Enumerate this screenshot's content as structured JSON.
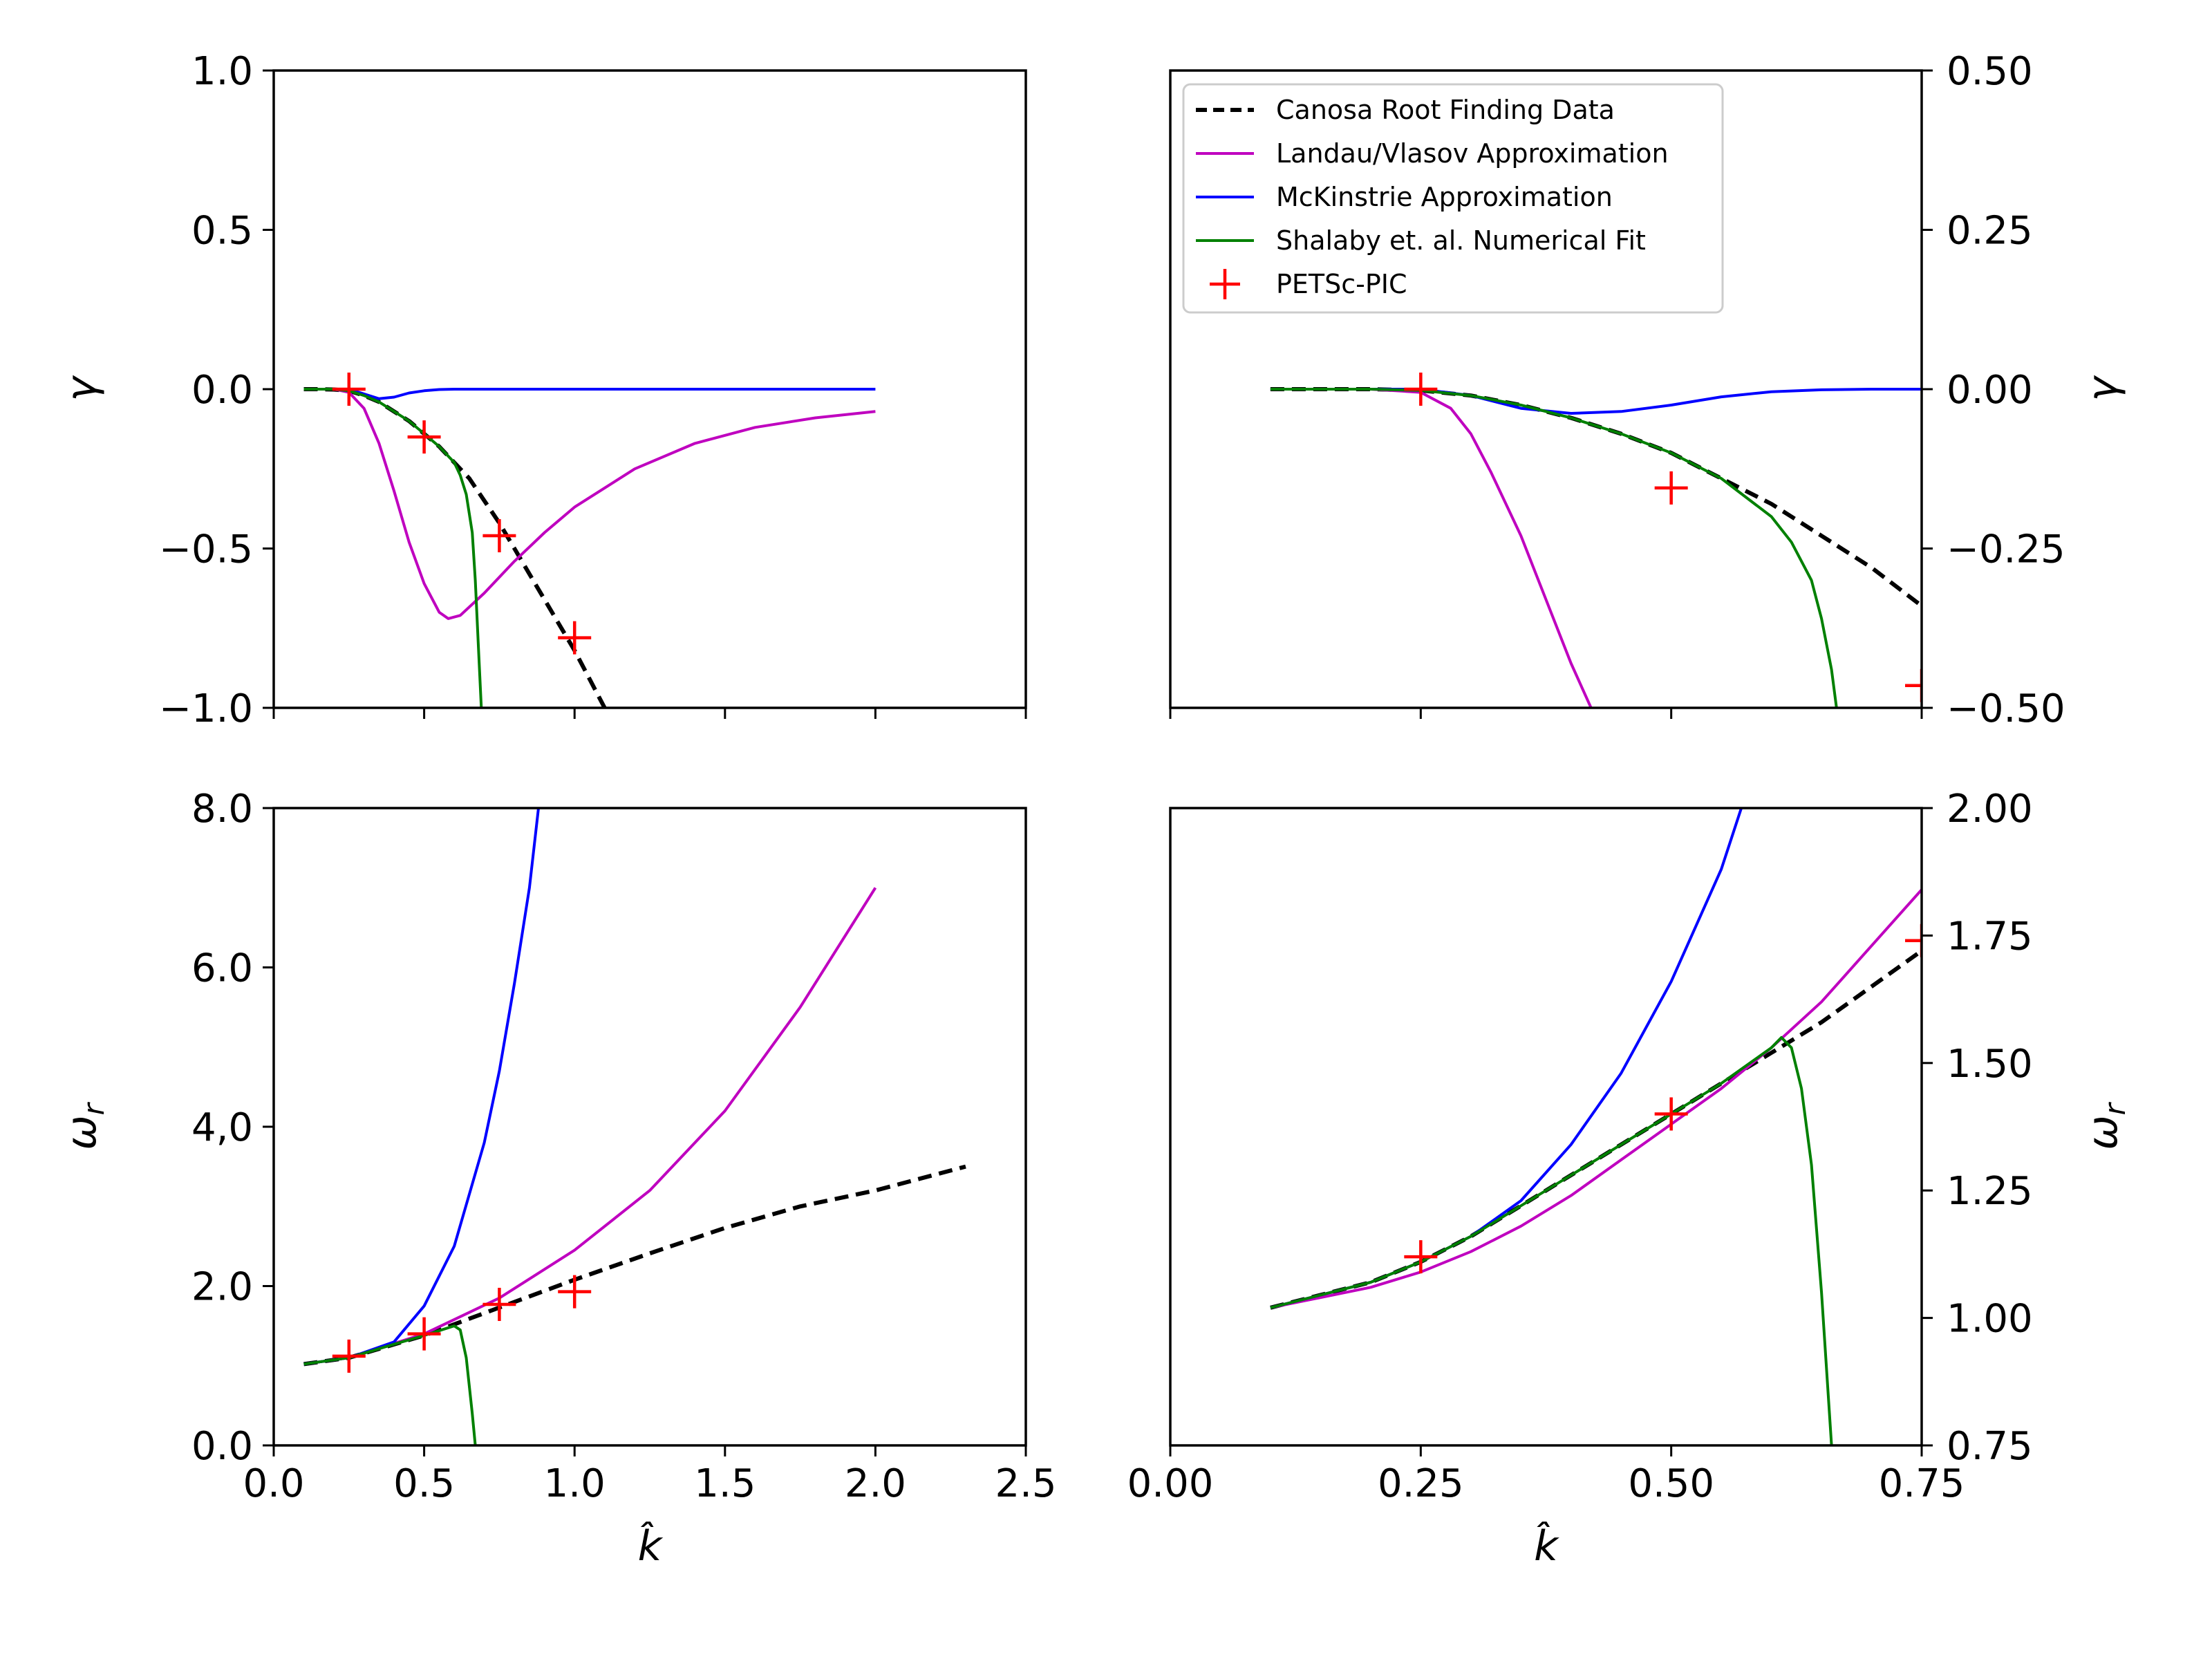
{
  "chart_data": [
    {
      "panel": "top-left",
      "type": "line",
      "xlabel": "",
      "ylabel": "γ",
      "xlim": [
        0.0,
        2.5
      ],
      "ylim": [
        -1.0,
        1.0
      ],
      "x_ticks": [
        0.0,
        0.5,
        1.0,
        1.5,
        2.0,
        2.5
      ],
      "x_tick_labels": [
        "",
        "",
        "",
        "",
        "",
        ""
      ],
      "y_ticks": [
        -1.0,
        -0.5,
        0.0,
        0.5,
        1.0
      ],
      "y_tick_labels": [
        "−1.0",
        "−0.5",
        "0.0",
        "0.5",
        "1.0"
      ],
      "y_axis_side": "left",
      "series": [
        {
          "name": "Canosa Root Finding Data",
          "style": "dashed",
          "color": "#000000",
          "x": [
            0.1,
            0.15,
            0.2,
            0.25,
            0.3,
            0.35,
            0.4,
            0.45,
            0.5,
            0.55,
            0.6,
            0.65,
            0.7,
            0.75,
            0.8,
            0.85,
            0.9,
            0.95,
            1.0,
            1.05,
            1.1
          ],
          "y": [
            0.0,
            0.0,
            -0.001,
            -0.005,
            -0.02,
            -0.04,
            -0.07,
            -0.1,
            -0.14,
            -0.18,
            -0.23,
            -0.28,
            -0.35,
            -0.42,
            -0.5,
            -0.58,
            -0.66,
            -0.74,
            -0.82,
            -0.91,
            -1.0
          ]
        },
        {
          "name": "Landau/Vlasov Approximation",
          "style": "solid",
          "color": "#bf00bf",
          "x": [
            0.1,
            0.2,
            0.25,
            0.3,
            0.35,
            0.4,
            0.45,
            0.5,
            0.55,
            0.58,
            0.62,
            0.7,
            0.8,
            0.9,
            1.0,
            1.2,
            1.4,
            1.6,
            1.8,
            2.0
          ],
          "y": [
            0.0,
            0.0,
            -0.01,
            -0.06,
            -0.17,
            -0.32,
            -0.48,
            -0.61,
            -0.7,
            -0.72,
            -0.71,
            -0.64,
            -0.54,
            -0.45,
            -0.37,
            -0.25,
            -0.17,
            -0.12,
            -0.09,
            -0.07
          ]
        },
        {
          "name": "McKinstrie Approximation",
          "style": "solid",
          "color": "#0000ff",
          "x": [
            0.1,
            0.25,
            0.3,
            0.35,
            0.4,
            0.45,
            0.5,
            0.55,
            0.6,
            0.7,
            0.8,
            1.0,
            1.5,
            2.0
          ],
          "y": [
            0.0,
            0.0,
            -0.015,
            -0.03,
            -0.025,
            -0.012,
            -0.005,
            -0.001,
            0.0,
            0.0,
            0.0,
            0.0,
            0.0,
            0.0
          ]
        },
        {
          "name": "Shalaby et. al. Numerical Fit",
          "style": "solid",
          "color": "#008000",
          "x": [
            0.1,
            0.2,
            0.25,
            0.3,
            0.35,
            0.4,
            0.45,
            0.5,
            0.55,
            0.6,
            0.62,
            0.64,
            0.66,
            0.67,
            0.68,
            0.685,
            0.69
          ],
          "y": [
            0.0,
            0.0,
            -0.005,
            -0.02,
            -0.04,
            -0.07,
            -0.1,
            -0.14,
            -0.18,
            -0.23,
            -0.27,
            -0.33,
            -0.45,
            -0.6,
            -0.8,
            -0.9,
            -1.0
          ]
        },
        {
          "name": "PETSc-PIC",
          "style": "marker",
          "color": "#ff0000",
          "x": [
            0.25,
            0.5,
            0.75,
            1.0
          ],
          "y": [
            0.0,
            -0.15,
            -0.46,
            -0.78
          ]
        }
      ]
    },
    {
      "panel": "top-right",
      "type": "line",
      "xlabel": "",
      "ylabel": "γ",
      "xlim": [
        0.0,
        0.75
      ],
      "ylim": [
        -0.5,
        0.5
      ],
      "x_ticks": [
        0.0,
        0.25,
        0.5,
        0.75
      ],
      "x_tick_labels": [
        "",
        "",
        "",
        ""
      ],
      "y_ticks": [
        -0.5,
        -0.25,
        0.0,
        0.25,
        0.5
      ],
      "y_tick_labels": [
        "−0.50",
        "−0.25",
        "0.00",
        "0.25",
        "0.50"
      ],
      "y_axis_side": "right",
      "legend": "top-left",
      "series": [
        {
          "name": "Canosa Root Finding Data",
          "style": "dashed",
          "color": "#000000",
          "x": [
            0.1,
            0.2,
            0.25,
            0.3,
            0.35,
            0.4,
            0.45,
            0.5,
            0.55,
            0.6,
            0.65,
            0.7,
            0.75
          ],
          "y": [
            0.0,
            0.0,
            -0.002,
            -0.01,
            -0.025,
            -0.045,
            -0.07,
            -0.1,
            -0.14,
            -0.18,
            -0.23,
            -0.28,
            -0.34
          ]
        },
        {
          "name": "Landau/Vlasov Approximation",
          "style": "solid",
          "color": "#bf00bf",
          "x": [
            0.1,
            0.2,
            0.25,
            0.28,
            0.3,
            0.32,
            0.35,
            0.38,
            0.4,
            0.42
          ],
          "y": [
            0.0,
            0.0,
            -0.005,
            -0.03,
            -0.07,
            -0.13,
            -0.23,
            -0.35,
            -0.43,
            -0.5
          ]
        },
        {
          "name": "McKinstrie Approximation",
          "style": "solid",
          "color": "#0000ff",
          "x": [
            0.1,
            0.25,
            0.3,
            0.35,
            0.4,
            0.45,
            0.5,
            0.55,
            0.6,
            0.65,
            0.7,
            0.75
          ],
          "y": [
            0.0,
            0.0,
            -0.01,
            -0.03,
            -0.038,
            -0.035,
            -0.025,
            -0.012,
            -0.004,
            -0.001,
            0.0,
            0.0
          ]
        },
        {
          "name": "Shalaby et. al. Numerical Fit",
          "style": "solid",
          "color": "#008000",
          "x": [
            0.1,
            0.2,
            0.25,
            0.3,
            0.35,
            0.4,
            0.45,
            0.5,
            0.55,
            0.6,
            0.62,
            0.64,
            0.65,
            0.66,
            0.665
          ],
          "y": [
            0.0,
            0.0,
            -0.002,
            -0.01,
            -0.025,
            -0.045,
            -0.07,
            -0.1,
            -0.14,
            -0.2,
            -0.24,
            -0.3,
            -0.36,
            -0.44,
            -0.5
          ]
        },
        {
          "name": "PETSc-PIC",
          "style": "marker",
          "color": "#ff0000",
          "x": [
            0.25,
            0.5,
            0.75
          ],
          "y": [
            0.0,
            -0.155,
            -0.465
          ]
        }
      ]
    },
    {
      "panel": "bottom-left",
      "type": "line",
      "xlabel": "k̂",
      "ylabel": "ω_r",
      "xlim": [
        0.0,
        2.5
      ],
      "ylim": [
        0.0,
        8.0
      ],
      "x_ticks": [
        0.0,
        0.5,
        1.0,
        1.5,
        2.0,
        2.5
      ],
      "x_tick_labels": [
        "0.0",
        "0.5",
        "1.0",
        "1.5",
        "2.0",
        "2.5"
      ],
      "y_ticks": [
        0.0,
        2.0,
        4.0,
        6.0,
        8.0
      ],
      "y_tick_labels": [
        "0.0",
        "2.0",
        "4,0",
        "6.0",
        "8.0"
      ],
      "y_axis_side": "left",
      "series": [
        {
          "name": "Canosa Root Finding Data",
          "style": "dashed",
          "color": "#000000",
          "x": [
            0.1,
            0.25,
            0.5,
            0.75,
            1.0,
            1.25,
            1.5,
            1.75,
            2.0,
            2.3
          ],
          "y": [
            1.02,
            1.1,
            1.38,
            1.73,
            2.08,
            2.41,
            2.73,
            3.0,
            3.2,
            3.5
          ]
        },
        {
          "name": "Landau/Vlasov Approximation",
          "style": "solid",
          "color": "#bf00bf",
          "x": [
            0.1,
            0.25,
            0.5,
            0.75,
            1.0,
            1.25,
            1.5,
            1.75,
            2.0
          ],
          "y": [
            1.02,
            1.1,
            1.4,
            1.85,
            2.45,
            3.2,
            4.2,
            5.5,
            7.0
          ]
        },
        {
          "name": "McKinstrie Approximation",
          "style": "solid",
          "color": "#0000ff",
          "x": [
            0.1,
            0.25,
            0.4,
            0.5,
            0.6,
            0.7,
            0.75,
            0.8,
            0.85,
            0.88
          ],
          "y": [
            1.02,
            1.1,
            1.3,
            1.75,
            2.5,
            3.8,
            4.7,
            5.8,
            7.0,
            8.0
          ]
        },
        {
          "name": "Shalaby et. al. Numerical Fit",
          "style": "solid",
          "color": "#008000",
          "x": [
            0.1,
            0.25,
            0.4,
            0.5,
            0.6,
            0.62,
            0.64,
            0.66,
            0.67
          ],
          "y": [
            1.02,
            1.1,
            1.27,
            1.38,
            1.5,
            1.45,
            1.1,
            0.4,
            0.0
          ]
        },
        {
          "name": "PETSc-PIC",
          "style": "marker",
          "color": "#ff0000",
          "x": [
            0.25,
            0.5,
            0.75,
            1.0
          ],
          "y": [
            1.12,
            1.4,
            1.77,
            1.93
          ]
        }
      ]
    },
    {
      "panel": "bottom-right",
      "type": "line",
      "xlabel": "k̂",
      "ylabel": "ω_r",
      "xlim": [
        0.0,
        0.75
      ],
      "ylim": [
        0.75,
        2.0
      ],
      "x_ticks": [
        0.0,
        0.25,
        0.5,
        0.75
      ],
      "x_tick_labels": [
        "0.00",
        "0.25",
        "0.50",
        "0.75"
      ],
      "y_ticks": [
        0.75,
        1.0,
        1.25,
        1.5,
        1.75,
        2.0
      ],
      "y_tick_labels": [
        "0.75",
        "1.00",
        "1.25",
        "1.50",
        "1.75",
        "2.00"
      ],
      "y_axis_side": "right",
      "series": [
        {
          "name": "Canosa Root Finding Data",
          "style": "dashed",
          "color": "#000000",
          "x": [
            0.1,
            0.2,
            0.25,
            0.3,
            0.35,
            0.4,
            0.45,
            0.5,
            0.55,
            0.6,
            0.65,
            0.7,
            0.75
          ],
          "y": [
            1.02,
            1.07,
            1.11,
            1.16,
            1.22,
            1.28,
            1.34,
            1.4,
            1.46,
            1.52,
            1.58,
            1.65,
            1.72
          ]
        },
        {
          "name": "Landau/Vlasov Approximation",
          "style": "solid",
          "color": "#bf00bf",
          "x": [
            0.1,
            0.2,
            0.25,
            0.3,
            0.35,
            0.4,
            0.45,
            0.5,
            0.55,
            0.6,
            0.65,
            0.7,
            0.75
          ],
          "y": [
            1.02,
            1.06,
            1.09,
            1.13,
            1.18,
            1.24,
            1.31,
            1.38,
            1.45,
            1.53,
            1.62,
            1.73,
            1.84
          ]
        },
        {
          "name": "McKinstrie Approximation",
          "style": "solid",
          "color": "#0000ff",
          "x": [
            0.1,
            0.2,
            0.25,
            0.3,
            0.35,
            0.4,
            0.45,
            0.5,
            0.55,
            0.57
          ],
          "y": [
            1.02,
            1.07,
            1.11,
            1.16,
            1.23,
            1.34,
            1.48,
            1.66,
            1.88,
            2.0
          ]
        },
        {
          "name": "Shalaby et. al. Numerical Fit",
          "style": "solid",
          "color": "#008000",
          "x": [
            0.1,
            0.2,
            0.25,
            0.3,
            0.35,
            0.4,
            0.45,
            0.5,
            0.55,
            0.6,
            0.61,
            0.62,
            0.63,
            0.64,
            0.65,
            0.66
          ],
          "y": [
            1.02,
            1.07,
            1.11,
            1.16,
            1.22,
            1.28,
            1.34,
            1.4,
            1.46,
            1.53,
            1.55,
            1.53,
            1.45,
            1.3,
            1.05,
            0.75
          ]
        },
        {
          "name": "PETSc-PIC",
          "style": "marker",
          "color": "#ff0000",
          "x": [
            0.25,
            0.5,
            0.75
          ],
          "y": [
            1.12,
            1.4,
            1.74
          ]
        }
      ]
    }
  ],
  "legend": {
    "entries": [
      {
        "label": "Canosa Root Finding Data",
        "color": "#000000",
        "style": "dashed"
      },
      {
        "label": "Landau/Vlasov Approximation",
        "color": "#bf00bf",
        "style": "solid"
      },
      {
        "label": "McKinstrie Approximation",
        "color": "#0000ff",
        "style": "solid"
      },
      {
        "label": "Shalaby et. al. Numerical Fit",
        "color": "#008000",
        "style": "solid"
      },
      {
        "label": "PETSc-PIC",
        "color": "#ff0000",
        "style": "marker"
      }
    ]
  }
}
